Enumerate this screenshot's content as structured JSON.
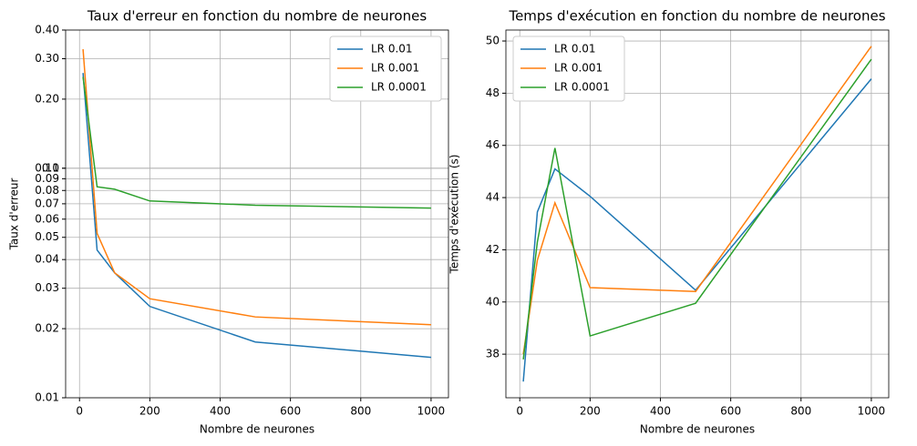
{
  "chart_data": [
    {
      "type": "line",
      "title": "Taux d'erreur en fonction du nombre de neurones",
      "xlabel": "Nombre de neurones",
      "ylabel": "Taux d'erreur",
      "x": [
        10,
        50,
        100,
        200,
        500,
        1000
      ],
      "series": [
        {
          "name": "LR 0.01",
          "color": "#1f77b4",
          "values": [
            0.26,
            0.044,
            0.035,
            0.025,
            0.0175,
            0.015
          ]
        },
        {
          "name": "LR 0.001",
          "color": "#ff7f0e",
          "values": [
            0.33,
            0.052,
            0.035,
            0.027,
            0.0225,
            0.0208
          ]
        },
        {
          "name": "LR 0.0001",
          "color": "#2ca02c",
          "values": [
            0.25,
            0.083,
            0.081,
            0.072,
            0.069,
            0.067
          ]
        }
      ],
      "xlim": [
        -39.5,
        1049.5
      ],
      "xticks": [
        0,
        200,
        400,
        600,
        800,
        1000
      ],
      "ylim": [
        0.01,
        0.4
      ],
      "ylog": true,
      "yticks": [
        0.01,
        0.02,
        0.03,
        0.04,
        0.05,
        0.06,
        0.07,
        0.08,
        0.09,
        {
          "value": 0.1,
          "label": "0.10"
        },
        0.1,
        {
          "value": 0.2,
          "label": "0.20"
        },
        {
          "value": 0.3,
          "label": "0.30"
        },
        {
          "value": 0.4,
          "label": "0.40"
        }
      ],
      "grid": true,
      "legend": "upper right"
    },
    {
      "type": "line",
      "title": "Temps d'exécution en fonction du nombre de neurones",
      "xlabel": "Nombre de neurones",
      "ylabel": "Temps d'exécution (s)",
      "x": [
        10,
        50,
        100,
        200,
        500,
        1000
      ],
      "series": [
        {
          "name": "LR 0.01",
          "color": "#1f77b4",
          "values": [
            36.95,
            43.45,
            45.1,
            44.05,
            40.45,
            48.55
          ]
        },
        {
          "name": "LR 0.001",
          "color": "#ff7f0e",
          "values": [
            38.0,
            41.6,
            43.8,
            40.55,
            40.4,
            49.8
          ]
        },
        {
          "name": "LR 0.0001",
          "color": "#2ca02c",
          "values": [
            37.8,
            42.3,
            45.9,
            38.7,
            39.95,
            49.3
          ]
        }
      ],
      "xlim": [
        -39.5,
        1049.5
      ],
      "xticks": [
        0,
        200,
        400,
        600,
        800,
        1000
      ],
      "ylim": [
        36.33,
        50.42
      ],
      "ylog": false,
      "yticks": [
        38,
        40,
        42,
        44,
        46,
        48,
        50
      ],
      "grid": true,
      "legend": "upper left"
    }
  ]
}
